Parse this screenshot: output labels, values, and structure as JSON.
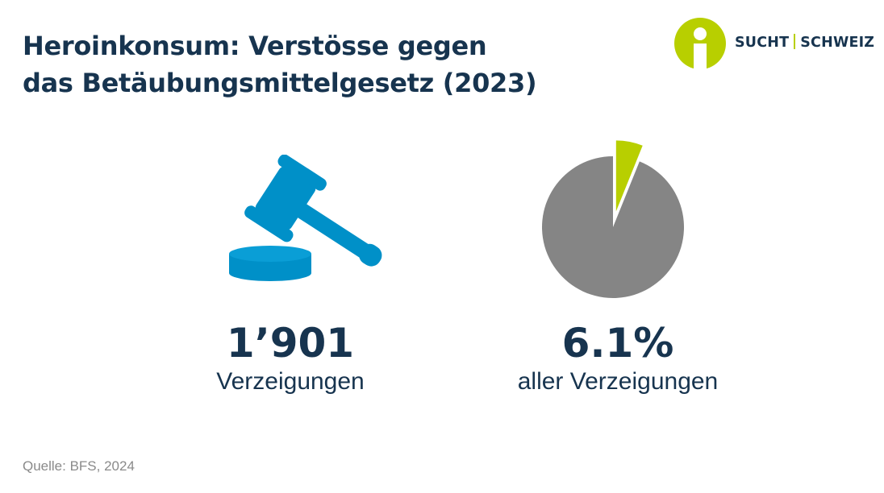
{
  "header": {
    "title_line1": "Heroinkonsum: Verstösse gegen",
    "title_line2": "das Betäubungsmittelgesetz (2023)"
  },
  "logo": {
    "left_text": "SUCHT",
    "right_text": "SCHWEIZ",
    "icon": "person-circle-logo-icon",
    "color": "#b8cf00"
  },
  "stats": [
    {
      "icon": "gavel-icon",
      "value": "1’901",
      "label": "Verzeigungen"
    },
    {
      "icon": "pie-chart-icon",
      "value": "6.1%",
      "label": "aller Verzeigungen"
    }
  ],
  "chart_data": {
    "type": "pie",
    "title": "",
    "slices": [
      {
        "name": "",
        "value": 6.1,
        "color": "#b8cf00",
        "exploded": true
      },
      {
        "name": "",
        "value": 93.9,
        "color": "#858585",
        "exploded": false
      }
    ],
    "start": "12 o'clock, clockwise"
  },
  "colors": {
    "text": "#17344f",
    "gavel": "#0090c8",
    "pie_highlight": "#b8cf00",
    "pie_rest": "#858585",
    "source": "#8a8a8a"
  },
  "footer": {
    "source": "Quelle: BFS, 2024"
  }
}
